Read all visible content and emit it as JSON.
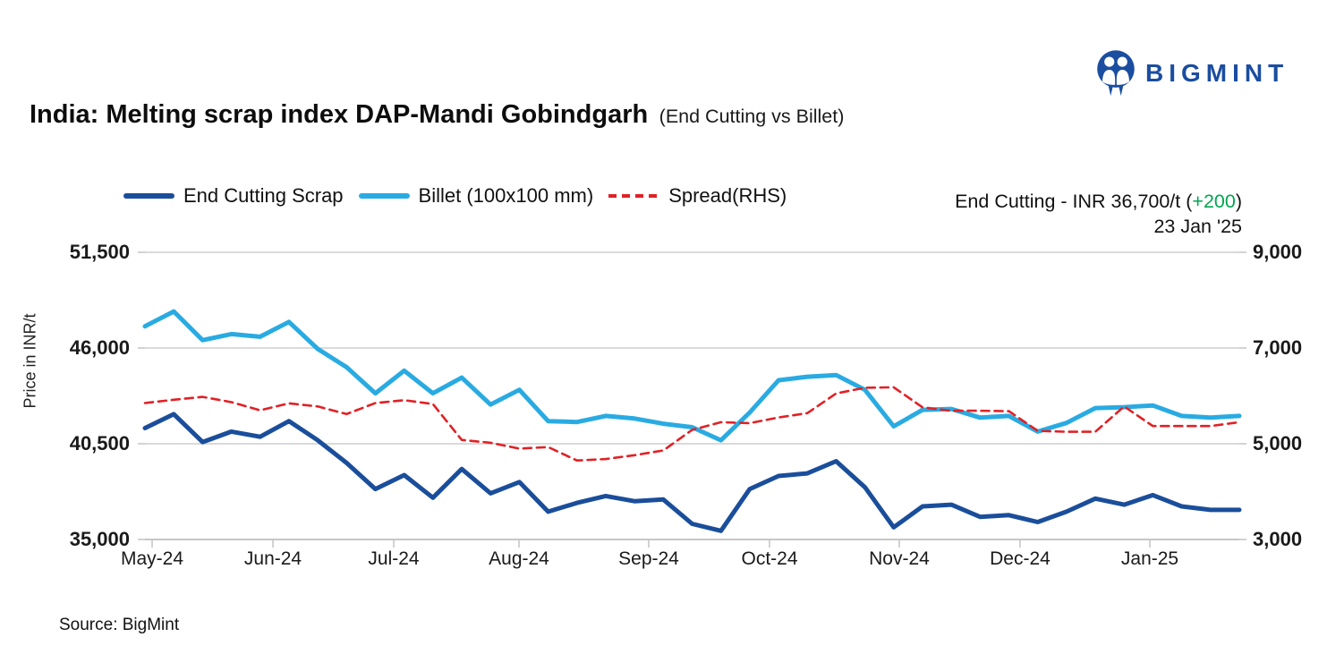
{
  "logo": {
    "text": "BIGMINT",
    "color": "#1B4DA0"
  },
  "title": {
    "main": "India: Melting scrap index DAP-Mandi Gobindgarh",
    "sub": "(End Cutting vs Billet)"
  },
  "annotation": {
    "prefix": "End Cutting - INR 36,700/t (",
    "change": "+200",
    "suffix": ")",
    "change_color": "#00A651",
    "date": "23 Jan '25"
  },
  "source": "Source: BigMint",
  "chart_data": {
    "type": "line",
    "title": "India: Melting scrap index DAP-Mandi Gobindgarh (End Cutting vs Billet)",
    "ylabel_left": "Price in INR/t",
    "ylim_left": [
      35000,
      51500
    ],
    "ylim_right": [
      3000,
      9000
    ],
    "yticks_left": [
      {
        "v": 51500,
        "label": "51,500"
      },
      {
        "v": 46000,
        "label": "46,000"
      },
      {
        "v": 40500,
        "label": "40,500"
      },
      {
        "v": 35000,
        "label": "35,000"
      }
    ],
    "yticks_right": [
      {
        "v": 9000,
        "label": "9,000"
      },
      {
        "v": 7000,
        "label": "7,000"
      },
      {
        "v": 5000,
        "label": "5,000"
      },
      {
        "v": 3000,
        "label": "3,000"
      }
    ],
    "x_tick_labels": [
      "May-24",
      "Jun-24",
      "Jul-24",
      "Aug-24",
      "Sep-24",
      "Oct-24",
      "Nov-24",
      "Dec-24",
      "Jan-25"
    ],
    "x_note": "weekly samples, May-24 to 23 Jan '25",
    "grid": "horizontal",
    "legend_position": "top-left",
    "series": [
      {
        "name": "End Cutting Scrap",
        "axis": "left",
        "unit": "INR/t",
        "color": "#1A4E9B",
        "style": "solid",
        "values": [
          41400,
          42200,
          40600,
          41200,
          40900,
          41800,
          40700,
          39400,
          37900,
          38700,
          37400,
          39050,
          37650,
          38300,
          36600,
          37100,
          37500,
          37200,
          37300,
          35900,
          35500,
          37900,
          38650,
          38800,
          39500,
          38000,
          35700,
          36900,
          37000,
          36300,
          36400,
          36000,
          36600,
          37350,
          37000,
          37550,
          36900,
          36700,
          36700
        ]
      },
      {
        "name": "Billet (100x100 mm)",
        "axis": "left",
        "unit": "INR/t",
        "color": "#29ABE2",
        "style": "solid",
        "values": [
          47250,
          48100,
          46450,
          46800,
          46650,
          47500,
          45950,
          44900,
          43400,
          44700,
          43400,
          44300,
          42750,
          43600,
          41800,
          41750,
          42100,
          41950,
          41650,
          41450,
          40700,
          42300,
          44150,
          44350,
          44450,
          43600,
          41500,
          42450,
          42500,
          42000,
          42100,
          41200,
          41700,
          42550,
          42600,
          42700,
          42100,
          42000,
          42100
        ]
      },
      {
        "name": "Spread(RHS)",
        "axis": "right",
        "unit": "INR/t",
        "color": "#E02126",
        "style": "dashed",
        "values": [
          5850,
          5920,
          5980,
          5870,
          5700,
          5845,
          5780,
          5620,
          5850,
          5910,
          5830,
          5080,
          5020,
          4900,
          4930,
          4650,
          4680,
          4760,
          4860,
          5290,
          5450,
          5430,
          5550,
          5640,
          6050,
          6170,
          6180,
          5760,
          5690,
          5690,
          5680,
          5270,
          5250,
          5250,
          5780,
          5370,
          5370,
          5370,
          5450
        ]
      }
    ]
  }
}
